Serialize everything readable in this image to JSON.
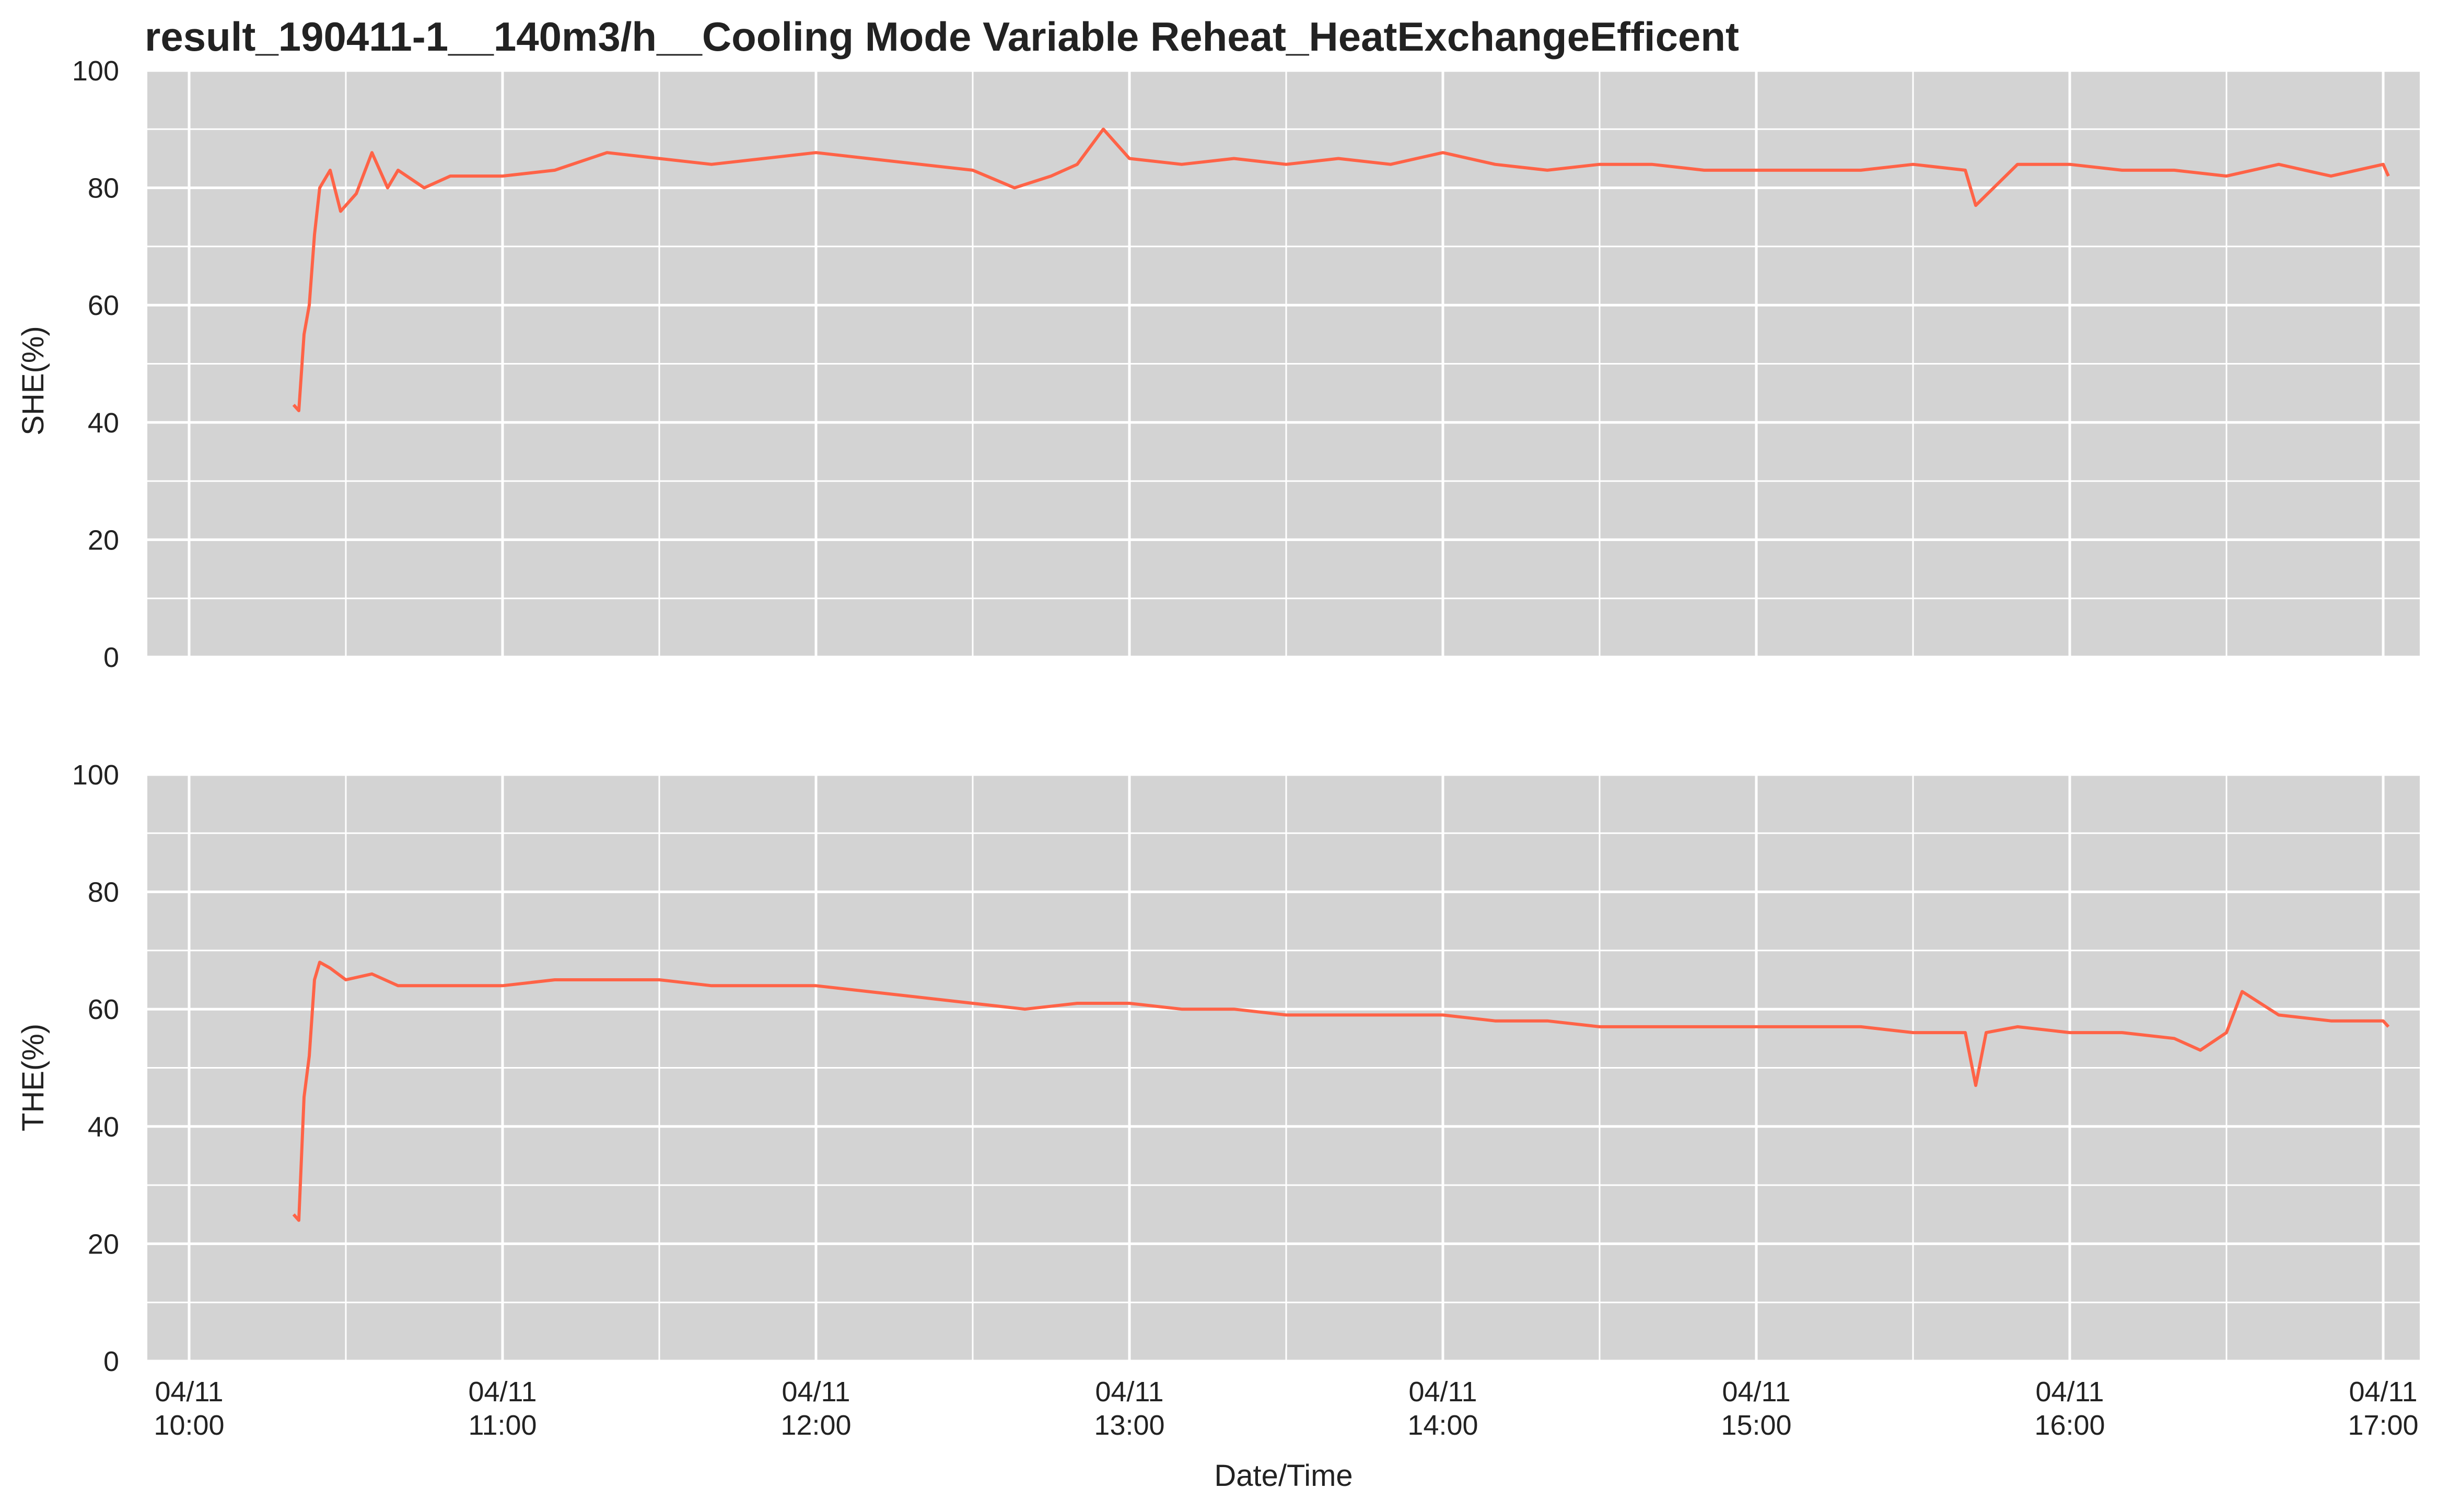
{
  "colors": {
    "background": "#d3d3d3",
    "grid": "#ffffff",
    "line": "#ff6347",
    "text": "#222222"
  },
  "chart_data": [
    {
      "type": "line",
      "title": "result_190411-1__140m3/h__Cooling Mode Variable Reheat_HeatExchangeEfficent",
      "xlabel": "",
      "ylabel": "SHE(%)",
      "ylim": [
        0,
        100
      ],
      "yticks": [
        "0",
        "20",
        "40",
        "60",
        "80",
        "100"
      ],
      "xlim": [
        "2019-04-11 09:52",
        "2019-04-11 17:07"
      ],
      "grid": true,
      "series": [
        {
          "x": [
            "2019-04-11 10:20",
            "2019-04-11 10:21",
            "2019-04-11 10:22",
            "2019-04-11 10:23",
            "2019-04-11 10:24",
            "2019-04-11 10:25",
            "2019-04-11 10:27",
            "2019-04-11 10:29",
            "2019-04-11 10:32",
            "2019-04-11 10:35",
            "2019-04-11 10:38",
            "2019-04-11 10:40",
            "2019-04-11 10:45",
            "2019-04-11 10:50",
            "2019-04-11 11:00",
            "2019-04-11 11:10",
            "2019-04-11 11:20",
            "2019-04-11 11:30",
            "2019-04-11 11:40",
            "2019-04-11 11:50",
            "2019-04-11 12:00",
            "2019-04-11 12:10",
            "2019-04-11 12:20",
            "2019-04-11 12:30",
            "2019-04-11 12:38",
            "2019-04-11 12:45",
            "2019-04-11 12:50",
            "2019-04-11 12:55",
            "2019-04-11 13:00",
            "2019-04-11 13:10",
            "2019-04-11 13:20",
            "2019-04-11 13:30",
            "2019-04-11 13:40",
            "2019-04-11 13:50",
            "2019-04-11 14:00",
            "2019-04-11 14:10",
            "2019-04-11 14:20",
            "2019-04-11 14:30",
            "2019-04-11 14:40",
            "2019-04-11 14:50",
            "2019-04-11 15:00",
            "2019-04-11 15:10",
            "2019-04-11 15:20",
            "2019-04-11 15:30",
            "2019-04-11 15:40",
            "2019-04-11 15:42",
            "2019-04-11 15:50",
            "2019-04-11 16:00",
            "2019-04-11 16:10",
            "2019-04-11 16:20",
            "2019-04-11 16:30",
            "2019-04-11 16:40",
            "2019-04-11 16:50",
            "2019-04-11 17:00",
            "2019-04-11 17:01"
          ],
          "values": [
            43,
            42,
            55,
            60,
            72,
            80,
            83,
            76,
            79,
            86,
            80,
            83,
            80,
            82,
            82,
            83,
            86,
            85,
            84,
            85,
            86,
            85,
            84,
            83,
            80,
            82,
            84,
            90,
            85,
            84,
            85,
            84,
            85,
            84,
            86,
            84,
            83,
            84,
            84,
            83,
            83,
            83,
            83,
            84,
            83,
            77,
            84,
            84,
            83,
            83,
            82,
            84,
            82,
            84,
            82
          ]
        }
      ]
    },
    {
      "type": "line",
      "title": "",
      "xlabel": "Date/Time",
      "ylabel": "THE(%)",
      "ylim": [
        0,
        100
      ],
      "yticks": [
        "0",
        "20",
        "40",
        "60",
        "80",
        "100"
      ],
      "xlim": [
        "2019-04-11 09:52",
        "2019-04-11 17:07"
      ],
      "xticks": [
        {
          "date": "04/11",
          "time": "10:00"
        },
        {
          "date": "04/11",
          "time": "11:00"
        },
        {
          "date": "04/11",
          "time": "12:00"
        },
        {
          "date": "04/11",
          "time": "13:00"
        },
        {
          "date": "04/11",
          "time": "14:00"
        },
        {
          "date": "04/11",
          "time": "15:00"
        },
        {
          "date": "04/11",
          "time": "16:00"
        },
        {
          "date": "04/11",
          "time": "17:00"
        }
      ],
      "grid": true,
      "series": [
        {
          "x": [
            "2019-04-11 10:20",
            "2019-04-11 10:21",
            "2019-04-11 10:22",
            "2019-04-11 10:23",
            "2019-04-11 10:24",
            "2019-04-11 10:25",
            "2019-04-11 10:27",
            "2019-04-11 10:30",
            "2019-04-11 10:35",
            "2019-04-11 10:40",
            "2019-04-11 10:50",
            "2019-04-11 11:00",
            "2019-04-11 11:10",
            "2019-04-11 11:20",
            "2019-04-11 11:30",
            "2019-04-11 11:40",
            "2019-04-11 11:50",
            "2019-04-11 12:00",
            "2019-04-11 12:10",
            "2019-04-11 12:20",
            "2019-04-11 12:30",
            "2019-04-11 12:40",
            "2019-04-11 12:50",
            "2019-04-11 13:00",
            "2019-04-11 13:10",
            "2019-04-11 13:20",
            "2019-04-11 13:30",
            "2019-04-11 13:40",
            "2019-04-11 13:50",
            "2019-04-11 14:00",
            "2019-04-11 14:10",
            "2019-04-11 14:20",
            "2019-04-11 14:30",
            "2019-04-11 14:40",
            "2019-04-11 14:50",
            "2019-04-11 15:00",
            "2019-04-11 15:10",
            "2019-04-11 15:20",
            "2019-04-11 15:30",
            "2019-04-11 15:40",
            "2019-04-11 15:42",
            "2019-04-11 15:44",
            "2019-04-11 15:50",
            "2019-04-11 16:00",
            "2019-04-11 16:10",
            "2019-04-11 16:20",
            "2019-04-11 16:25",
            "2019-04-11 16:30",
            "2019-04-11 16:33",
            "2019-04-11 16:40",
            "2019-04-11 16:50",
            "2019-04-11 17:00",
            "2019-04-11 17:01"
          ],
          "values": [
            25,
            24,
            45,
            52,
            65,
            68,
            67,
            65,
            66,
            64,
            64,
            64,
            65,
            65,
            65,
            64,
            64,
            64,
            63,
            62,
            61,
            60,
            61,
            61,
            60,
            60,
            59,
            59,
            59,
            59,
            58,
            58,
            57,
            57,
            57,
            57,
            57,
            57,
            56,
            56,
            47,
            56,
            57,
            56,
            56,
            55,
            53,
            56,
            63,
            59,
            58,
            58,
            57
          ]
        }
      ]
    }
  ]
}
